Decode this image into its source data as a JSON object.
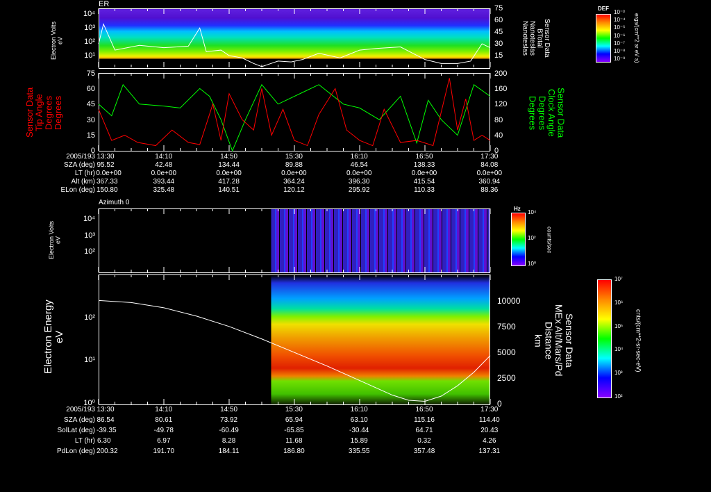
{
  "panel1": {
    "title": "ER",
    "ylabel": "Electron Volts\neV",
    "yticks": [
      "10⁴",
      "10³",
      "10²",
      "10¹"
    ],
    "right_ticks": [
      "75",
      "60",
      "45",
      "30",
      "15"
    ],
    "right_label": "Sensor Data\nBTotal\nNanoteslas\nNanoteslas",
    "colorbar": {
      "title": "DEF",
      "ticks": [
        "10⁻³",
        "10⁻⁴",
        "10⁻⁵",
        "10⁻⁶",
        "10⁻⁷",
        "10⁻⁸",
        "10⁻⁹"
      ],
      "unit": "ergs/(cm**2 sr eV s)"
    }
  },
  "panel2": {
    "left_label": "Sensor Data\nTip Angle\nDegrees\nDegrees",
    "right_label": "Sensor Data\nClock Angle\nDegrees\nDegrees",
    "left_ticks": [
      "75",
      "60",
      "45",
      "30",
      "15",
      "0"
    ],
    "right_ticks": [
      "200",
      "160",
      "120",
      "80",
      "40",
      "0"
    ],
    "left_color": "#ff0000",
    "right_color": "#00ff00"
  },
  "table1": {
    "rows": [
      {
        "label": "2005/193",
        "values": [
          "13:30",
          "14:10",
          "14:50",
          "15:30",
          "16:10",
          "16:50",
          "17:30"
        ]
      },
      {
        "label": "SZA (deg)",
        "values": [
          "95.52",
          "42.48",
          "134.44",
          "89.88",
          "46.54",
          "138.33",
          "84.08"
        ]
      },
      {
        "label": "LT (hr)",
        "values": [
          "0.0e+00",
          "0.0e+00",
          "0.0e+00",
          "0.0e+00",
          "0.0e+00",
          "0.0e+00",
          "0.0e+00"
        ]
      },
      {
        "label": "Alt (km)",
        "values": [
          "367.33",
          "393.44",
          "417.28",
          "364.24",
          "396.30",
          "415.54",
          "360.94"
        ]
      },
      {
        "label": "ELon (deg)",
        "values": [
          "150.80",
          "325.48",
          "140.51",
          "120.12",
          "295.92",
          "110.33",
          "88.36"
        ]
      }
    ]
  },
  "panel3": {
    "title": "Azimuth 0",
    "ylabel": "Electron Volts\neV",
    "yticks": [
      "10⁴",
      "10³",
      "10²"
    ],
    "colorbar": {
      "title": "Hz",
      "ticks": [
        "10⁴",
        "10²",
        "10⁰"
      ],
      "unit": "counts/sec"
    }
  },
  "panel4": {
    "ylabel": "Electron Energy\neV",
    "yticks": [
      "10²",
      "10¹",
      "10⁰"
    ],
    "right_ticks": [
      "10000",
      "7500",
      "5000",
      "2500",
      "0"
    ],
    "right_label": "Sensor Data\nMEx Alt/Mars/Pd\nDistance\nkm",
    "colorbar": {
      "ticks": [
        "10⁷",
        "10⁶",
        "10⁵",
        "10⁴",
        "10³",
        "10²"
      ],
      "unit": "cnts/(cm**2-sr-sec-eV)"
    }
  },
  "table2": {
    "rows": [
      {
        "label": "2005/193",
        "values": [
          "13:30",
          "14:10",
          "14:50",
          "15:30",
          "16:10",
          "16:50",
          "17:30"
        ]
      },
      {
        "label": "SZA (deg)",
        "values": [
          "86.54",
          "80.61",
          "73.92",
          "65.94",
          "63.10",
          "115.16",
          "114.40"
        ]
      },
      {
        "label": "SolLat (deg)",
        "values": [
          "-39.35",
          "-49.78",
          "-60.49",
          "-65.85",
          "-30.44",
          "64.71",
          "20.43"
        ]
      },
      {
        "label": "LT (hr)",
        "values": [
          "6.30",
          "6.97",
          "8.28",
          "11.68",
          "15.89",
          "0.32",
          "4.26"
        ]
      },
      {
        "label": "PdLon (deg)",
        "values": [
          "200.32",
          "191.70",
          "184.11",
          "186.80",
          "335.55",
          "357.48",
          "137.31"
        ]
      }
    ]
  },
  "chart_data": [
    {
      "type": "heatmap",
      "title": "ER",
      "xlabel": "2005/193",
      "ylabel": "Electron Volts (eV)",
      "xlim": [
        "13:30",
        "17:30"
      ],
      "yscale": "log",
      "ylim": [
        10,
        10000
      ],
      "overlay": {
        "name": "BTotal (nT)",
        "ylim": [
          0,
          75
        ],
        "x_min": [
          0,
          3,
          10,
          25,
          40,
          55,
          62,
          66,
          75,
          80,
          88,
          95,
          100,
          110,
          118,
          125,
          135,
          148,
          160,
          170,
          185,
          200,
          210,
          220,
          228,
          235,
          240
        ],
        "y": [
          30,
          55,
          22,
          28,
          25,
          27,
          50,
          20,
          22,
          15,
          12,
          5,
          1,
          8,
          7,
          10,
          18,
          12,
          22,
          24,
          26,
          10,
          5,
          5,
          8,
          30,
          25
        ]
      }
    },
    {
      "type": "line",
      "xlim_min": [
        0,
        240
      ],
      "series": [
        {
          "name": "Tip Angle (deg)",
          "color": "#ff0000",
          "ylim": [
            0,
            75
          ],
          "x_min": [
            0,
            8,
            16,
            24,
            35,
            45,
            55,
            62,
            70,
            75,
            80,
            88,
            95,
            100,
            106,
            113,
            120,
            128,
            135,
            145,
            152,
            160,
            168,
            175,
            185,
            195,
            205,
            215,
            220,
            225,
            230,
            235,
            240
          ],
          "y": [
            40,
            10,
            15,
            8,
            5,
            20,
            8,
            6,
            45,
            10,
            55,
            30,
            20,
            60,
            15,
            40,
            10,
            5,
            35,
            60,
            20,
            10,
            5,
            40,
            8,
            10,
            5,
            70,
            20,
            50,
            10,
            15,
            10
          ]
        },
        {
          "name": "Clock Angle (deg)",
          "color": "#00ff00",
          "ylim": [
            0,
            200
          ],
          "x_min": [
            0,
            8,
            15,
            25,
            40,
            50,
            62,
            68,
            75,
            82,
            90,
            100,
            110,
            125,
            135,
            150,
            160,
            172,
            185,
            195,
            202,
            210,
            220,
            230,
            240
          ],
          "y": [
            120,
            90,
            170,
            120,
            115,
            110,
            160,
            140,
            80,
            0,
            80,
            170,
            120,
            150,
            170,
            120,
            110,
            80,
            140,
            20,
            130,
            80,
            40,
            170,
            140
          ]
        }
      ]
    },
    {
      "type": "heatmap",
      "title": "Azimuth 0",
      "ylabel": "Electron Volts (eV)",
      "yscale": "log",
      "ylim": [
        10,
        30000
      ],
      "data_start": "15:17"
    },
    {
      "type": "heatmap",
      "ylabel": "Electron Energy (eV)",
      "yscale": "log",
      "ylim": [
        1,
        1000
      ],
      "data_start": "15:17",
      "overlay": {
        "name": "MEx Alt/Mars/Pd Distance (km)",
        "ylim": [
          0,
          12500
        ],
        "x_min": [
          0,
          20,
          40,
          60,
          80,
          100,
          120,
          140,
          160,
          180,
          190,
          200,
          210,
          220,
          230,
          240
        ],
        "y": [
          10000,
          9800,
          9300,
          8500,
          7500,
          6300,
          5000,
          3700,
          2300,
          900,
          400,
          300,
          800,
          1800,
          3100,
          4700
        ]
      }
    }
  ]
}
